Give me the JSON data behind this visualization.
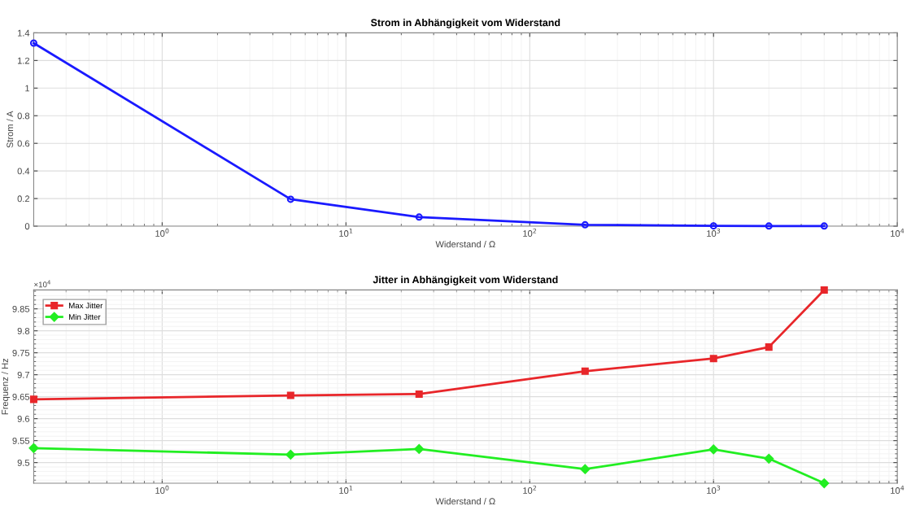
{
  "chart_data": [
    {
      "type": "line",
      "title": "Strom in Abhängigkeit vom Widerstand",
      "xlabel": "Widerstand / Ω",
      "ylabel": "Strom / A",
      "log": "x",
      "x": [
        0.2,
        5,
        25,
        200,
        1000,
        2000,
        4000
      ],
      "series": [
        {
          "color": "#1a1aff",
          "marker": "circle",
          "values": [
            1.326,
            0.195,
            0.066,
            0.01,
            0.002,
            0.001,
            0.001
          ]
        }
      ],
      "xlim": [
        0.2,
        10000
      ],
      "xticks": [
        {
          "value": 1,
          "label": "10$^{0}$"
        },
        {
          "value": 10,
          "label": "10$^{1}$"
        },
        {
          "value": 100,
          "label": "10$^{2}$"
        },
        {
          "value": 1000,
          "label": "10$^{3}$"
        },
        {
          "value": 10000,
          "label": "10$^{4}$"
        }
      ],
      "ylim": [
        0,
        1.4
      ],
      "yticks": [
        0,
        0.2,
        0.4,
        0.6,
        0.8,
        1,
        1.2,
        1.4
      ],
      "grid": true,
      "line_style": "solid"
    },
    {
      "type": "line",
      "title": "Jitter in Abhängigkeit vom Widerstand",
      "xlabel": "Widerstand / Ω",
      "ylabel": "Frequenz / Hz",
      "log": "x",
      "x": [
        0.2,
        5,
        25,
        200,
        1000,
        2000,
        4000
      ],
      "series": [
        {
          "name": "Max Jitter",
          "color": "#e8262a",
          "marker": "square",
          "values": [
            9.644,
            9.653,
            9.656,
            9.708,
            9.737,
            9.763,
            9.893
          ]
        },
        {
          "name": "Min Jitter",
          "color": "#22ee22",
          "marker": "diamond",
          "values": [
            9.533,
            9.518,
            9.531,
            9.485,
            9.53,
            9.509,
            9.453
          ]
        }
      ],
      "xlim": [
        0.2,
        10000
      ],
      "xticks": [
        {
          "value": 1,
          "label": "10$^{0}$"
        },
        {
          "value": 10,
          "label": "10$^{1}$"
        },
        {
          "value": 100,
          "label": "10$^{2}$"
        },
        {
          "value": 1000,
          "label": "10$^{3}$"
        },
        {
          "value": 10000,
          "label": "10$^{4}$"
        }
      ],
      "ylim": [
        9.453,
        9.893
      ],
      "yticks": [
        9.5,
        9.55,
        9.6,
        9.65,
        9.7,
        9.75,
        9.8,
        9.85
      ],
      "annotations": [
        "×10$^{4}$"
      ],
      "grid": true,
      "legend": "top left",
      "line_style": "solid"
    }
  ]
}
